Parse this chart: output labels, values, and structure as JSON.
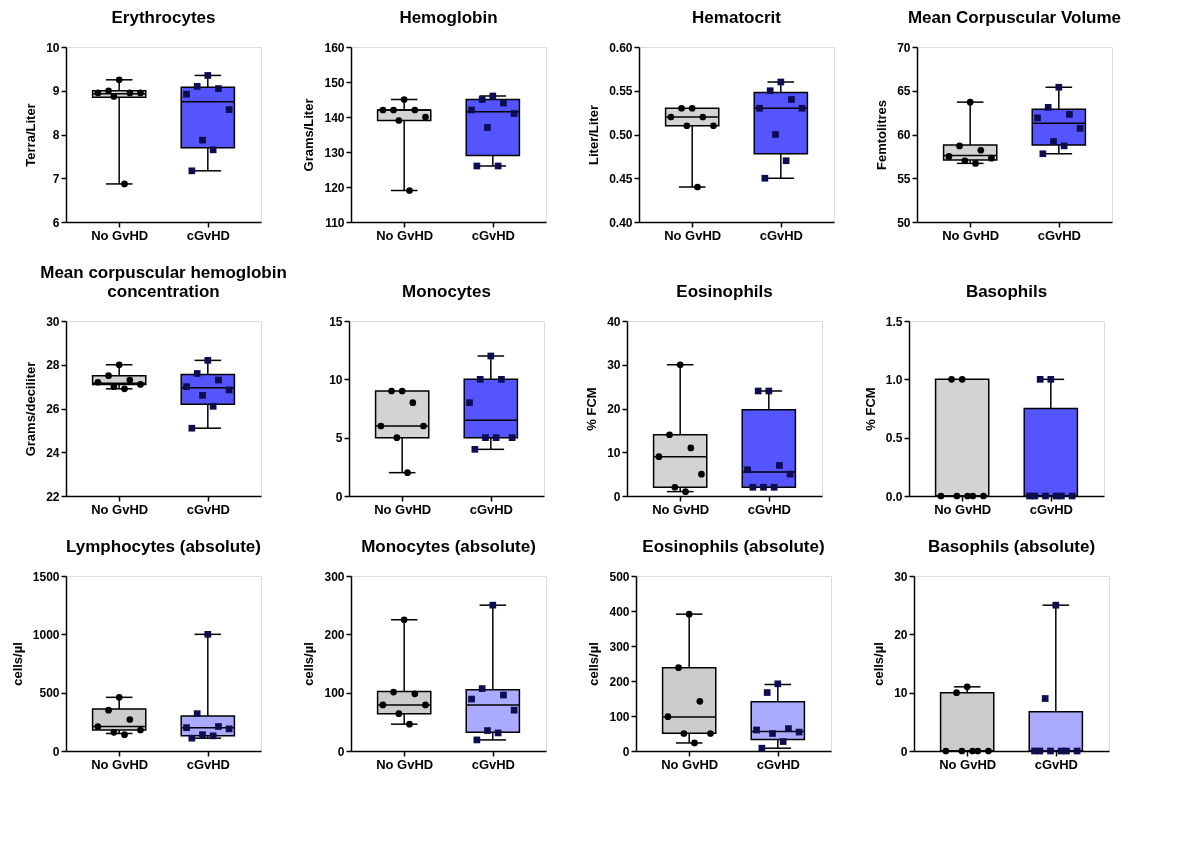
{
  "chart_data": [
    {
      "type": "box",
      "title": "Erythrocytes",
      "ylabel": "Terra/Liter",
      "categories": [
        "No GvHD",
        "cGvHD"
      ],
      "colors": [
        "#d3d3d3",
        "#5555ff"
      ],
      "ylim": [
        6,
        10
      ],
      "yticks": [
        6,
        7,
        8,
        9,
        10
      ],
      "boxes": [
        {
          "low": 6.87,
          "q1": 8.85,
          "median": 8.93,
          "q3": 9.0,
          "high": 9.25
        },
        {
          "low": 7.17,
          "q1": 7.7,
          "median": 8.75,
          "q3": 9.08,
          "high": 9.35
        }
      ],
      "series": [
        {
          "type": "scatter",
          "x": [
            "No GvHD",
            "No GvHD",
            "No GvHD",
            "No GvHD",
            "No GvHD",
            "No GvHD",
            "No GvHD"
          ],
          "values": [
            9.25,
            9.0,
            8.95,
            8.95,
            8.95,
            8.87,
            6.87
          ],
          "color": "#000000",
          "marker": "circle"
        },
        {
          "type": "scatter",
          "x": [
            "cGvHD",
            "cGvHD",
            "cGvHD",
            "cGvHD",
            "cGvHD",
            "cGvHD",
            "cGvHD",
            "cGvHD"
          ],
          "values": [
            9.35,
            9.1,
            9.05,
            8.92,
            8.57,
            7.87,
            7.65,
            7.17
          ],
          "color": "#0d0d50",
          "marker": "square"
        }
      ]
    },
    {
      "type": "box",
      "title": "Hemoglobin",
      "ylabel": "Grams/Liter",
      "categories": [
        "No GvHD",
        "cGvHD"
      ],
      "colors": [
        "#d3d3d3",
        "#5555ff"
      ],
      "ylim": [
        110,
        160
      ],
      "yticks": [
        110,
        120,
        130,
        140,
        150,
        160
      ],
      "boxes": [
        {
          "low": 119,
          "q1": 139,
          "median": 142,
          "q3": 142,
          "high": 145
        },
        {
          "low": 126,
          "q1": 129,
          "median": 141.5,
          "q3": 145,
          "high": 146
        }
      ],
      "series": [
        {
          "type": "scatter",
          "x": [
            "No GvHD",
            "No GvHD",
            "No GvHD",
            "No GvHD",
            "No GvHD",
            "No GvHD",
            "No GvHD"
          ],
          "values": [
            145,
            142,
            142,
            142,
            140,
            139,
            119
          ],
          "color": "#000000",
          "marker": "circle"
        },
        {
          "type": "scatter",
          "x": [
            "cGvHD",
            "cGvHD",
            "cGvHD",
            "cGvHD",
            "cGvHD",
            "cGvHD",
            "cGvHD",
            "cGvHD"
          ],
          "values": [
            146,
            145,
            144,
            142,
            141,
            137,
            126,
            126
          ],
          "color": "#0d0d50",
          "marker": "square"
        }
      ]
    },
    {
      "type": "box",
      "title": "Hematocrit",
      "ylabel": "Liter/Liter",
      "categories": [
        "No GvHD",
        "cGvHD"
      ],
      "colors": [
        "#d3d3d3",
        "#5555ff"
      ],
      "ylim": [
        0.4,
        0.6
      ],
      "yticks": [
        {
          "value": 0.4,
          "label": "0.40"
        },
        0.45,
        {
          "value": 0.5,
          "label": "0.50"
        },
        0.55,
        {
          "value": 0.6,
          "label": "0.60"
        }
      ],
      "boxes": [
        {
          "low": 0.44,
          "q1": 0.51,
          "median": 0.52,
          "q3": 0.53,
          "high": 0.53
        },
        {
          "low": 0.45,
          "q1": 0.478,
          "median": 0.53,
          "q3": 0.548,
          "high": 0.56
        }
      ],
      "series": [
        {
          "type": "scatter",
          "x": [
            "No GvHD",
            "No GvHD",
            "No GvHD",
            "No GvHD",
            "No GvHD",
            "No GvHD",
            "No GvHD"
          ],
          "values": [
            0.53,
            0.53,
            0.52,
            0.52,
            0.51,
            0.51,
            0.44
          ],
          "color": "#000000",
          "marker": "circle"
        },
        {
          "type": "scatter",
          "x": [
            "cGvHD",
            "cGvHD",
            "cGvHD",
            "cGvHD",
            "cGvHD",
            "cGvHD",
            "cGvHD",
            "cGvHD"
          ],
          "values": [
            0.56,
            0.55,
            0.54,
            0.53,
            0.53,
            0.5,
            0.47,
            0.45
          ],
          "color": "#0d0d50",
          "marker": "square"
        }
      ]
    },
    {
      "type": "box",
      "title": "Mean Corpuscular Volume",
      "ylabel": "Femtolitres",
      "categories": [
        "No GvHD",
        "cGvHD"
      ],
      "colors": [
        "#d3d3d3",
        "#5555ff"
      ],
      "ylim": [
        50,
        70
      ],
      "yticks": [
        50,
        55,
        60,
        65,
        70
      ],
      "boxes": [
        {
          "low": 56.7,
          "q1": 57.1,
          "median": 57.6,
          "q3": 58.8,
          "high": 63.7
        },
        {
          "low": 57.8,
          "q1": 58.8,
          "median": 61.3,
          "q3": 62.9,
          "high": 65.4
        }
      ],
      "series": [
        {
          "type": "scatter",
          "x": [
            "No GvHD",
            "No GvHD",
            "No GvHD",
            "No GvHD",
            "No GvHD",
            "No GvHD",
            "No GvHD"
          ],
          "values": [
            63.7,
            58.7,
            58.2,
            57.5,
            57.3,
            57.0,
            56.7
          ],
          "color": "#000000",
          "marker": "circle"
        },
        {
          "type": "scatter",
          "x": [
            "cGvHD",
            "cGvHD",
            "cGvHD",
            "cGvHD",
            "cGvHD",
            "cGvHD",
            "cGvHD",
            "cGvHD"
          ],
          "values": [
            65.4,
            63.1,
            62.3,
            61.9,
            60.7,
            59.2,
            58.7,
            57.8
          ],
          "color": "#0d0d50",
          "marker": "square"
        }
      ]
    },
    {
      "type": "box",
      "title": "Mean corpuscular hemoglobin\nconcentration",
      "ylabel": "Grams/deciliter",
      "categories": [
        "No GvHD",
        "cGvHD"
      ],
      "colors": [
        "#d3d3d3",
        "#5555ff"
      ],
      "ylim": [
        22,
        30
      ],
      "yticks": [
        22,
        24,
        26,
        28,
        30
      ],
      "boxes": [
        {
          "low": 26.9,
          "q1": 27.1,
          "median": 27.15,
          "q3": 27.5,
          "high": 28.0
        },
        {
          "low": 25.1,
          "q1": 26.2,
          "median": 26.95,
          "q3": 27.55,
          "high": 28.2
        }
      ],
      "series": [
        {
          "type": "scatter",
          "x": [
            "No GvHD",
            "No GvHD",
            "No GvHD",
            "No GvHD",
            "No GvHD",
            "No GvHD",
            "No GvHD"
          ],
          "values": [
            28.0,
            27.5,
            27.3,
            27.2,
            27.1,
            27.0,
            26.9
          ],
          "color": "#000000",
          "marker": "circle"
        },
        {
          "type": "scatter",
          "x": [
            "cGvHD",
            "cGvHD",
            "cGvHD",
            "cGvHD",
            "cGvHD",
            "cGvHD",
            "cGvHD",
            "cGvHD"
          ],
          "values": [
            28.2,
            27.6,
            27.3,
            27.0,
            26.85,
            26.6,
            26.1,
            25.1
          ],
          "color": "#0d0d50",
          "marker": "square"
        }
      ]
    },
    {
      "type": "box",
      "title": "Monocytes",
      "categories": [
        "No GvHD",
        "cGvHD"
      ],
      "colors": [
        "#d3d3d3",
        "#5555ff"
      ],
      "ylim": [
        0,
        15
      ],
      "yticks": [
        0,
        5,
        10,
        15
      ],
      "boxes": [
        {
          "low": 2,
          "q1": 5,
          "median": 6,
          "q3": 9,
          "high": 9
        },
        {
          "low": 4,
          "q1": 5,
          "median": 6.5,
          "q3": 10,
          "high": 12
        }
      ],
      "series": [
        {
          "type": "scatter",
          "x": [
            "No GvHD",
            "No GvHD",
            "No GvHD",
            "No GvHD",
            "No GvHD",
            "No GvHD",
            "No GvHD"
          ],
          "values": [
            9,
            9,
            8,
            6,
            6,
            5,
            2
          ],
          "color": "#000000",
          "marker": "circle"
        },
        {
          "type": "scatter",
          "x": [
            "cGvHD",
            "cGvHD",
            "cGvHD",
            "cGvHD",
            "cGvHD",
            "cGvHD",
            "cGvHD",
            "cGvHD"
          ],
          "values": [
            12,
            10,
            10,
            8,
            5,
            5,
            5,
            4
          ],
          "color": "#0d0d50",
          "marker": "square"
        }
      ]
    },
    {
      "type": "box",
      "title": "Eosinophils",
      "ylabel": "% FCM",
      "categories": [
        "No GvHD",
        "cGvHD"
      ],
      "colors": [
        "#d3d3d3",
        "#5555ff"
      ],
      "ylim": [
        0,
        40
      ],
      "yticks": [
        0,
        10,
        20,
        30,
        40
      ],
      "boxes": [
        {
          "low": 1,
          "q1": 2,
          "median": 9,
          "q3": 14,
          "high": 30
        },
        {
          "low": 2,
          "q1": 2,
          "median": 5.5,
          "q3": 19.7,
          "high": 24
        }
      ],
      "series": [
        {
          "type": "scatter",
          "x": [
            "No GvHD",
            "No GvHD",
            "No GvHD",
            "No GvHD",
            "No GvHD",
            "No GvHD",
            "No GvHD"
          ],
          "values": [
            30,
            14,
            11,
            9,
            5,
            2,
            1
          ],
          "color": "#000000",
          "marker": "circle"
        },
        {
          "type": "scatter",
          "x": [
            "cGvHD",
            "cGvHD",
            "cGvHD",
            "cGvHD",
            "cGvHD",
            "cGvHD",
            "cGvHD",
            "cGvHD"
          ],
          "values": [
            24,
            24,
            7,
            6,
            5,
            2,
            2,
            2
          ],
          "color": "#0d0d50",
          "marker": "square"
        }
      ]
    },
    {
      "type": "box",
      "title": "Basophils",
      "ylabel": "% FCM",
      "categories": [
        "No GvHD",
        "cGvHD"
      ],
      "colors": [
        "#d3d3d3",
        "#5555ff"
      ],
      "ylim": [
        0,
        1.5
      ],
      "yticks": [
        {
          "value": 0,
          "label": "0.0"
        },
        0.5,
        {
          "value": 1,
          "label": "1.0"
        },
        1.5
      ],
      "boxes": [
        {
          "low": 0,
          "q1": 0,
          "median": 0,
          "q3": 1,
          "high": 1
        },
        {
          "low": 0,
          "q1": 0,
          "median": 0,
          "q3": 0.75,
          "high": 1
        }
      ],
      "series": [
        {
          "type": "scatter",
          "x": [
            "No GvHD",
            "No GvHD",
            "No GvHD",
            "No GvHD",
            "No GvHD",
            "No GvHD",
            "No GvHD"
          ],
          "values": [
            1,
            1,
            0,
            0,
            0,
            0,
            0
          ],
          "color": "#000000",
          "marker": "circle"
        },
        {
          "type": "scatter",
          "x": [
            "cGvHD",
            "cGvHD",
            "cGvHD",
            "cGvHD",
            "cGvHD",
            "cGvHD",
            "cGvHD",
            "cGvHD"
          ],
          "values": [
            1,
            1,
            0,
            0,
            0,
            0,
            0,
            0
          ],
          "color": "#0d0d50",
          "marker": "square"
        }
      ]
    },
    {
      "type": "box",
      "title": "Lymphocytes (absolute)",
      "ylabel": "cells/µl",
      "categories": [
        "No GvHD",
        "cGvHD"
      ],
      "colors": [
        "#cccccc",
        "#aaaaff"
      ],
      "ylim": [
        0,
        1500
      ],
      "yticks": [
        0,
        500,
        {
          "value": 1000,
          "label": "1000"
        },
        {
          "value": 1500,
          "label": "1500"
        }
      ],
      "boxes": [
        {
          "low": 150,
          "q1": 180,
          "median": 210,
          "q3": 360,
          "high": 460
        },
        {
          "low": 110,
          "q1": 130,
          "median": 200,
          "q3": 300,
          "high": 1000
        }
      ],
      "series": [
        {
          "type": "scatter",
          "x": [
            "No GvHD",
            "No GvHD",
            "No GvHD",
            "No GvHD",
            "No GvHD",
            "No GvHD",
            "No GvHD"
          ],
          "values": [
            460,
            350,
            270,
            210,
            180,
            160,
            140
          ],
          "color": "#000000",
          "marker": "circle"
        },
        {
          "type": "scatter",
          "x": [
            "cGvHD",
            "cGvHD",
            "cGvHD",
            "cGvHD",
            "cGvHD",
            "cGvHD",
            "cGvHD",
            "cGvHD"
          ],
          "values": [
            1000,
            320,
            210,
            200,
            190,
            140,
            130,
            110
          ],
          "color": "#0d0d50",
          "marker": "square"
        }
      ]
    },
    {
      "type": "box",
      "title": "Monocytes (absolute)",
      "ylabel": "cells/µl",
      "categories": [
        "No GvHD",
        "cGvHD"
      ],
      "colors": [
        "#cccccc",
        "#aaaaff"
      ],
      "ylim": [
        0,
        300
      ],
      "yticks": [
        0,
        100,
        200,
        300
      ],
      "boxes": [
        {
          "low": 46,
          "q1": 64,
          "median": 79,
          "q3": 102,
          "high": 225
        },
        {
          "low": 19,
          "q1": 32,
          "median": 79,
          "q3": 105,
          "high": 250
        }
      ],
      "series": [
        {
          "type": "scatter",
          "x": [
            "No GvHD",
            "No GvHD",
            "No GvHD",
            "No GvHD",
            "No GvHD",
            "No GvHD",
            "No GvHD"
          ],
          "values": [
            225,
            101,
            98,
            79,
            79,
            64,
            46
          ],
          "color": "#000000",
          "marker": "circle"
        },
        {
          "type": "scatter",
          "x": [
            "cGvHD",
            "cGvHD",
            "cGvHD",
            "cGvHD",
            "cGvHD",
            "cGvHD",
            "cGvHD",
            "cGvHD"
          ],
          "values": [
            250,
            107,
            96,
            89,
            70,
            35,
            31,
            19
          ],
          "color": "#0d0d50",
          "marker": "square"
        }
      ]
    },
    {
      "type": "box",
      "title": "Eosinophils (absolute)",
      "ylabel": "cells/µl",
      "categories": [
        "No GvHD",
        "cGvHD"
      ],
      "colors": [
        "#cccccc",
        "#aaaaff"
      ],
      "ylim": [
        0,
        500
      ],
      "yticks": [
        0,
        100,
        200,
        300,
        400,
        500
      ],
      "boxes": [
        {
          "low": 23,
          "q1": 51,
          "median": 97,
          "q3": 238,
          "high": 391
        },
        {
          "low": 8,
          "q1": 33,
          "median": 56,
          "q3": 141,
          "high": 190
        }
      ],
      "series": [
        {
          "type": "scatter",
          "x": [
            "No GvHD",
            "No GvHD",
            "No GvHD",
            "No GvHD",
            "No GvHD",
            "No GvHD",
            "No GvHD"
          ],
          "values": [
            391,
            238,
            142,
            98,
            50,
            50,
            23
          ],
          "color": "#000000",
          "marker": "circle"
        },
        {
          "type": "scatter",
          "x": [
            "cGvHD",
            "cGvHD",
            "cGvHD",
            "cGvHD",
            "cGvHD",
            "cGvHD",
            "cGvHD",
            "cGvHD"
          ],
          "values": [
            192,
            167,
            64,
            60,
            54,
            50,
            27,
            8
          ],
          "color": "#0d0d50",
          "marker": "square"
        }
      ]
    },
    {
      "type": "box",
      "title": "Basophils (absolute)",
      "ylabel": "cells/µl",
      "categories": [
        "No GvHD",
        "cGvHD"
      ],
      "colors": [
        "#cccccc",
        "#aaaaff"
      ],
      "ylim": [
        0,
        30
      ],
      "yticks": [
        0,
        10,
        20,
        30
      ],
      "boxes": [
        {
          "low": 0,
          "q1": 0,
          "median": 0,
          "q3": 10,
          "high": 11
        },
        {
          "low": 0,
          "q1": 0,
          "median": 0,
          "q3": 6.75,
          "high": 25
        }
      ],
      "series": [
        {
          "type": "scatter",
          "x": [
            "No GvHD",
            "No GvHD",
            "No GvHD",
            "No GvHD",
            "No GvHD",
            "No GvHD",
            "No GvHD"
          ],
          "values": [
            11,
            10,
            0,
            0,
            0,
            0,
            0
          ],
          "color": "#000000",
          "marker": "circle"
        },
        {
          "type": "scatter",
          "x": [
            "cGvHD",
            "cGvHD",
            "cGvHD",
            "cGvHD",
            "cGvHD",
            "cGvHD",
            "cGvHD",
            "cGvHD"
          ],
          "values": [
            25,
            9,
            0,
            0,
            0,
            0,
            0,
            0
          ],
          "color": "#0d0d50",
          "marker": "square"
        }
      ]
    }
  ]
}
